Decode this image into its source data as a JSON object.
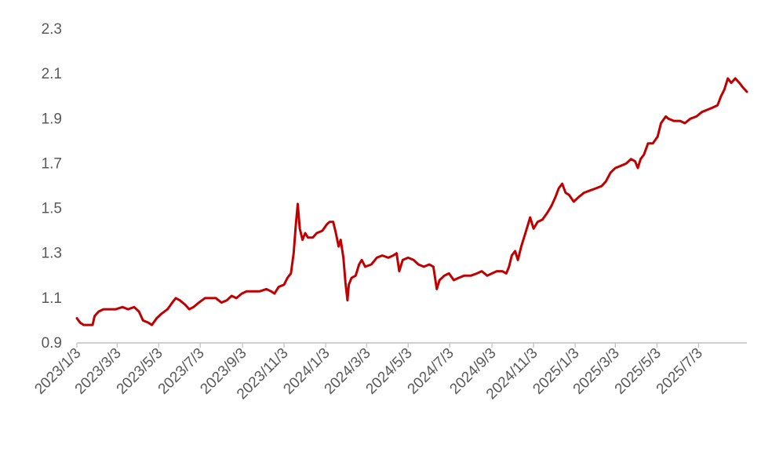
{
  "chart_data": {
    "type": "line",
    "title": "",
    "xlabel": "",
    "ylabel": "",
    "ylim": [
      0.9,
      2.3
    ],
    "y_ticks": [
      "0.9",
      "1.1",
      "1.3",
      "1.5",
      "1.7",
      "1.9",
      "2.1",
      "2.3"
    ],
    "x_range": [
      "2023/1/3",
      "2025/9/12"
    ],
    "x_ticks": [
      "2023/1/3",
      "2023/3/3",
      "2023/5/3",
      "2023/7/3",
      "2023/9/3",
      "2023/11/3",
      "2024/1/3",
      "2024/3/3",
      "2024/5/3",
      "2024/7/3",
      "2024/9/3",
      "2024/11/3",
      "2025/1/3",
      "2025/3/3",
      "2025/5/3",
      "2025/7/3"
    ],
    "grid": false,
    "legend": "none",
    "series_color": "#C00000",
    "series": [
      {
        "points": [
          [
            "2023/1/3",
            1.01
          ],
          [
            "2023/1/8",
            0.99
          ],
          [
            "2023/1/13",
            0.98
          ],
          [
            "2023/1/20",
            0.98
          ],
          [
            "2023/1/26",
            0.98
          ],
          [
            "2023/1/29",
            1.02
          ],
          [
            "2023/2/4",
            1.04
          ],
          [
            "2023/2/11",
            1.05
          ],
          [
            "2023/2/20",
            1.05
          ],
          [
            "2023/3/1",
            1.05
          ],
          [
            "2023/3/11",
            1.06
          ],
          [
            "2023/3/19",
            1.05
          ],
          [
            "2023/3/28",
            1.06
          ],
          [
            "2023/4/4",
            1.04
          ],
          [
            "2023/4/10",
            1.0
          ],
          [
            "2023/4/18",
            0.99
          ],
          [
            "2023/4/23",
            0.98
          ],
          [
            "2023/4/30",
            1.01
          ],
          [
            "2023/5/7",
            1.03
          ],
          [
            "2023/5/16",
            1.05
          ],
          [
            "2023/5/23",
            1.08
          ],
          [
            "2023/5/28",
            1.1
          ],
          [
            "2023/6/3",
            1.09
          ],
          [
            "2023/6/11",
            1.07
          ],
          [
            "2023/6/17",
            1.05
          ],
          [
            "2023/6/23",
            1.06
          ],
          [
            "2023/7/1",
            1.08
          ],
          [
            "2023/7/10",
            1.1
          ],
          [
            "2023/7/18",
            1.1
          ],
          [
            "2023/7/26",
            1.1
          ],
          [
            "2023/8/3",
            1.08
          ],
          [
            "2023/8/11",
            1.09
          ],
          [
            "2023/8/18",
            1.11
          ],
          [
            "2023/8/25",
            1.1
          ],
          [
            "2023/9/2",
            1.12
          ],
          [
            "2023/9/9",
            1.13
          ],
          [
            "2023/9/19",
            1.13
          ],
          [
            "2023/9/28",
            1.13
          ],
          [
            "2023/10/8",
            1.14
          ],
          [
            "2023/10/15",
            1.13
          ],
          [
            "2023/10/20",
            1.12
          ],
          [
            "2023/10/26",
            1.15
          ],
          [
            "2023/11/3",
            1.16
          ],
          [
            "2023/11/8",
            1.19
          ],
          [
            "2023/11/13",
            1.21
          ],
          [
            "2023/11/17",
            1.3
          ],
          [
            "2023/11/20",
            1.42
          ],
          [
            "2023/11/23",
            1.52
          ],
          [
            "2023/11/26",
            1.41
          ],
          [
            "2023/11/30",
            1.36
          ],
          [
            "2023/12/4",
            1.39
          ],
          [
            "2023/12/8",
            1.37
          ],
          [
            "2023/12/15",
            1.37
          ],
          [
            "2023/12/21",
            1.39
          ],
          [
            "2023/12/29",
            1.4
          ],
          [
            "2024/1/5",
            1.43
          ],
          [
            "2024/1/9",
            1.44
          ],
          [
            "2024/1/14",
            1.44
          ],
          [
            "2024/1/18",
            1.39
          ],
          [
            "2024/1/22",
            1.33
          ],
          [
            "2024/1/25",
            1.36
          ],
          [
            "2024/1/29",
            1.28
          ],
          [
            "2024/2/1",
            1.17
          ],
          [
            "2024/2/4",
            1.09
          ],
          [
            "2024/2/6",
            1.16
          ],
          [
            "2024/2/10",
            1.19
          ],
          [
            "2024/2/16",
            1.2
          ],
          [
            "2024/2/21",
            1.25
          ],
          [
            "2024/2/25",
            1.27
          ],
          [
            "2024/3/1",
            1.24
          ],
          [
            "2024/3/10",
            1.25
          ],
          [
            "2024/3/18",
            1.28
          ],
          [
            "2024/3/26",
            1.29
          ],
          [
            "2024/4/4",
            1.28
          ],
          [
            "2024/4/11",
            1.29
          ],
          [
            "2024/4/16",
            1.3
          ],
          [
            "2024/4/20",
            1.22
          ],
          [
            "2024/4/25",
            1.27
          ],
          [
            "2024/5/3",
            1.28
          ],
          [
            "2024/5/11",
            1.27
          ],
          [
            "2024/5/18",
            1.25
          ],
          [
            "2024/5/26",
            1.24
          ],
          [
            "2024/6/3",
            1.25
          ],
          [
            "2024/6/9",
            1.24
          ],
          [
            "2024/6/14",
            1.14
          ],
          [
            "2024/6/18",
            1.18
          ],
          [
            "2024/6/25",
            1.2
          ],
          [
            "2024/7/2",
            1.21
          ],
          [
            "2024/7/9",
            1.18
          ],
          [
            "2024/7/16",
            1.19
          ],
          [
            "2024/7/24",
            1.2
          ],
          [
            "2024/8/3",
            1.2
          ],
          [
            "2024/8/12",
            1.21
          ],
          [
            "2024/8/19",
            1.22
          ],
          [
            "2024/8/27",
            1.2
          ],
          [
            "2024/9/3",
            1.21
          ],
          [
            "2024/9/10",
            1.22
          ],
          [
            "2024/9/18",
            1.22
          ],
          [
            "2024/9/24",
            1.21
          ],
          [
            "2024/9/28",
            1.24
          ],
          [
            "2024/10/2",
            1.29
          ],
          [
            "2024/10/7",
            1.31
          ],
          [
            "2024/10/11",
            1.27
          ],
          [
            "2024/10/16",
            1.33
          ],
          [
            "2024/10/21",
            1.38
          ],
          [
            "2024/10/25",
            1.42
          ],
          [
            "2024/10/29",
            1.46
          ],
          [
            "2024/11/3",
            1.41
          ],
          [
            "2024/11/9",
            1.44
          ],
          [
            "2024/11/16",
            1.45
          ],
          [
            "2024/11/23",
            1.48
          ],
          [
            "2024/11/29",
            1.51
          ],
          [
            "2024/12/5",
            1.55
          ],
          [
            "2024/12/10",
            1.59
          ],
          [
            "2024/12/15",
            1.61
          ],
          [
            "2024/12/20",
            1.57
          ],
          [
            "2024/12/25",
            1.56
          ],
          [
            "2025/1/1",
            1.53
          ],
          [
            "2025/1/8",
            1.55
          ],
          [
            "2025/1/16",
            1.57
          ],
          [
            "2025/1/25",
            1.58
          ],
          [
            "2025/2/3",
            1.59
          ],
          [
            "2025/2/11",
            1.6
          ],
          [
            "2025/2/17",
            1.62
          ],
          [
            "2025/2/24",
            1.66
          ],
          [
            "2025/3/3",
            1.68
          ],
          [
            "2025/3/11",
            1.69
          ],
          [
            "2025/3/19",
            1.7
          ],
          [
            "2025/3/26",
            1.72
          ],
          [
            "2025/4/1",
            1.71
          ],
          [
            "2025/4/5",
            1.68
          ],
          [
            "2025/4/9",
            1.72
          ],
          [
            "2025/4/14",
            1.74
          ],
          [
            "2025/4/20",
            1.79
          ],
          [
            "2025/4/27",
            1.79
          ],
          [
            "2025/5/4",
            1.82
          ],
          [
            "2025/5/9",
            1.88
          ],
          [
            "2025/5/16",
            1.91
          ],
          [
            "2025/5/20",
            1.9
          ],
          [
            "2025/5/28",
            1.89
          ],
          [
            "2025/6/6",
            1.89
          ],
          [
            "2025/6/13",
            1.88
          ],
          [
            "2025/6/21",
            1.9
          ],
          [
            "2025/6/30",
            1.91
          ],
          [
            "2025/7/8",
            1.93
          ],
          [
            "2025/7/16",
            1.94
          ],
          [
            "2025/7/24",
            1.95
          ],
          [
            "2025/7/31",
            1.96
          ],
          [
            "2025/8/5",
            2.0
          ],
          [
            "2025/8/10",
            2.03
          ],
          [
            "2025/8/15",
            2.08
          ],
          [
            "2025/8/20",
            2.06
          ],
          [
            "2025/8/26",
            2.08
          ],
          [
            "2025/9/1",
            2.06
          ],
          [
            "2025/9/6",
            2.04
          ],
          [
            "2025/9/12",
            2.02
          ]
        ]
      }
    ]
  }
}
